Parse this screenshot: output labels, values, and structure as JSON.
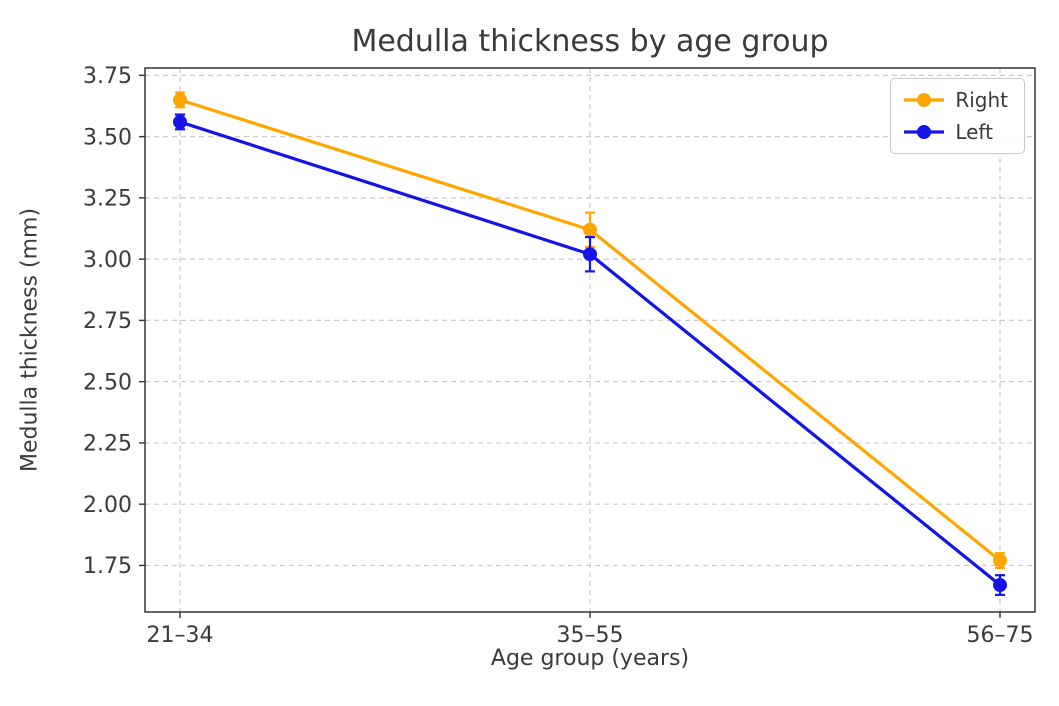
{
  "chart_data": {
    "type": "line",
    "title": "Medulla thickness by age group",
    "xlabel": "Age group (years)",
    "ylabel": "Medulla thickness (mm)",
    "categories": [
      "21–34",
      "35–55",
      "56–75"
    ],
    "series": [
      {
        "name": "Right",
        "color": "#FFA500",
        "values": [
          3.65,
          3.12,
          1.77
        ],
        "yerr": [
          0.03,
          0.07,
          0.03
        ]
      },
      {
        "name": "Left",
        "color": "#1414E6",
        "values": [
          3.56,
          3.02,
          1.67
        ],
        "yerr": [
          0.03,
          0.07,
          0.04
        ]
      }
    ],
    "ylim": [
      1.56,
      3.78
    ],
    "yticks": [
      1.75,
      2.0,
      2.25,
      2.5,
      2.75,
      3.0,
      3.25,
      3.5,
      3.75
    ],
    "ytick_labels": [
      "1.75",
      "2.00",
      "2.25",
      "2.50",
      "2.75",
      "3.00",
      "3.25",
      "3.50",
      "3.75"
    ],
    "grid": {
      "visible": true,
      "style": "dashed",
      "color": "#cccccc"
    },
    "legend": {
      "position": "upper right",
      "entries": [
        "Right",
        "Left"
      ]
    },
    "text_color": "#3a3a3a",
    "spine_color": "#333333"
  }
}
